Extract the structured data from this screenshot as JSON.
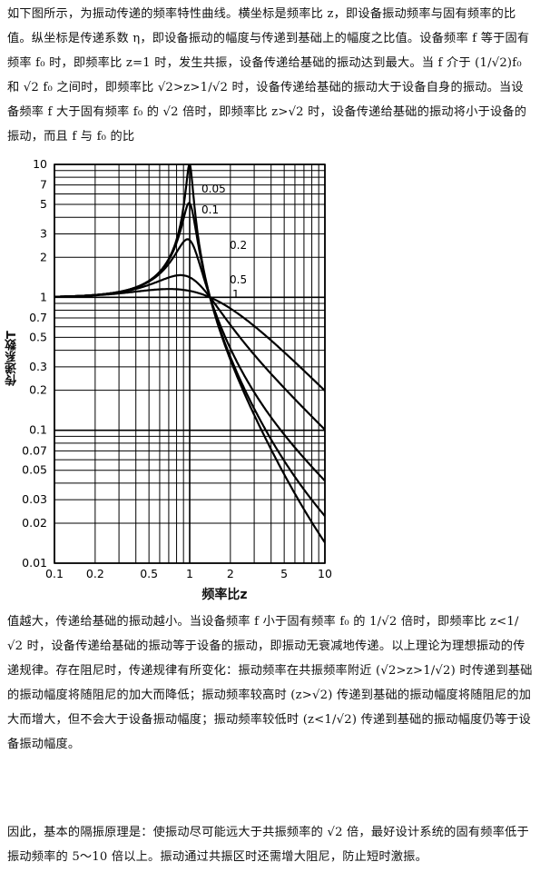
{
  "text": {
    "intro": "如下图所示，为振动传递的频率特性曲线。横坐标是频率比 z，即设备振动频率与固有频率的比值。纵坐标是传递系数 η，即设备振动的幅度与传递到基础上的幅度之比值。设备频率 f 等于固有频率 f₀ 时，即频率比 z=1 时，发生共振，设备传递给基础的振动达到最大。当 f 介于 (1/√2)f₀ 和 √2 f₀ 之间时，即频率比 √2>z>1/√2 时，设备传递给基础的振动大于设备自身的振动。当设备频率 f 大于固有频率 f₀ 的 √2 倍时，即频率比 z>√2 时，设备传递给基础的振动将小于设备的振动，而且 f 与 f₀ 的比",
    "after": "值越大，传递给基础的振动越小。当设备频率 f 小于固有频率 f₀ 的 1/√2 倍时，即频率比 z<1/√2 时，设备传递给基础的振动等于设备的振动，即振动无衰减地传递。以上理论为理想振动的传递规律。存在阻尼时，传递规律有所变化：振动频率在共振频率附近 (√2>z>1/√2) 时传递到基础的振动幅度将随阻尼的加大而降低；振动频率较高时 (z>√2) 传递到基础的振动幅度将随阻尼的加大而增大，但不会大于设备振动幅度；振动频率较低时 (z<1/√2) 传递到基础的振动幅度仍等于设备振动幅度。",
    "conclusion": "因此，基本的隔振原理是：使振动尽可能远大于共振频率的 √2 倍，最好设计系统的固有频率低于振动频率的 5～10 倍以上。振动通过共振区时还需增大阻尼，防止短时激振。"
  },
  "chart_data": {
    "type": "line",
    "xscale": "log",
    "yscale": "log",
    "xlim": [
      0.1,
      10
    ],
    "ylim": [
      0.01,
      10
    ],
    "xlabel": "频率比z",
    "ylabel": "传递系数T",
    "xticks": [
      "0.1",
      "0.2",
      "0.5",
      "1",
      "2",
      "5",
      "10"
    ],
    "yticks": [
      "0.01",
      "0.02",
      "0.03",
      "0.05",
      "0.07",
      "0.1",
      "0.2",
      "0.3",
      "0.5",
      "0.7",
      "1",
      "2",
      "3",
      "5",
      "7",
      "10"
    ],
    "damping_ratios": [
      0.05,
      0.1,
      0.2,
      0.5,
      1
    ],
    "series": [
      {
        "name": "0.05"
      },
      {
        "name": "0.1"
      },
      {
        "name": "0.2"
      },
      {
        "name": "0.5"
      },
      {
        "name": "1"
      }
    ]
  }
}
